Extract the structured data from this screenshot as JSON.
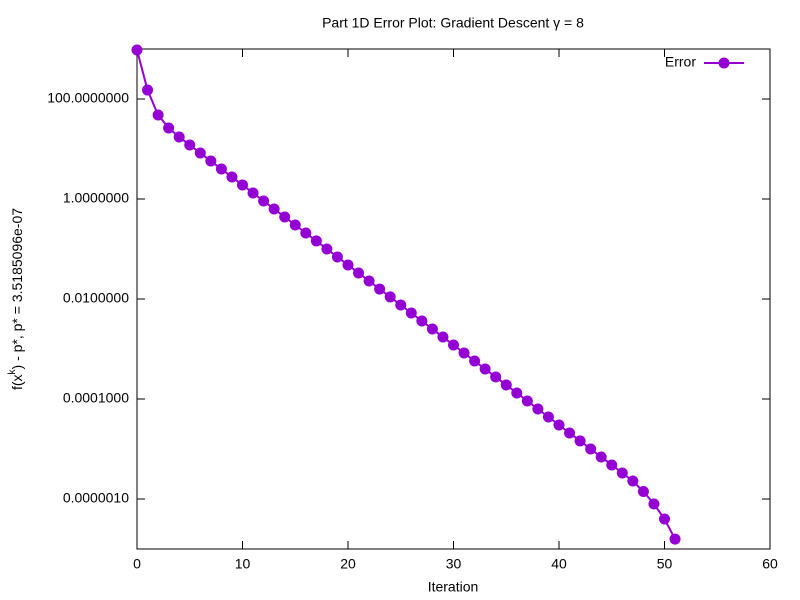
{
  "chart_data": {
    "type": "line",
    "title": "Part 1D Error Plot: Gradient Descent γ = 8",
    "xlabel": "Iteration",
    "ylabel": [
      "f(x",
      "k",
      ") - p*, p* = 3.5185096e-07"
    ],
    "x": [
      0,
      1,
      2,
      3,
      4,
      5,
      6,
      7,
      8,
      9,
      10,
      11,
      12,
      13,
      14,
      15,
      16,
      17,
      18,
      19,
      20,
      21,
      22,
      23,
      24,
      25,
      26,
      27,
      28,
      29,
      30,
      31,
      32,
      33,
      34,
      35,
      36,
      37,
      38,
      39,
      40,
      41,
      42,
      43,
      44,
      45,
      46,
      47,
      48,
      49,
      50,
      51
    ],
    "series": [
      {
        "name": "Error",
        "color": "#9400d3",
        "values": [
          955,
          151,
          47.9,
          26.3,
          17.4,
          12.0,
          8.32,
          5.75,
          3.98,
          2.75,
          1.91,
          1.32,
          0.912,
          0.631,
          0.437,
          0.302,
          0.209,
          0.145,
          0.1,
          0.0692,
          0.0479,
          0.0331,
          0.0229,
          0.0158,
          0.011,
          0.00759,
          0.00525,
          0.00363,
          0.00251,
          0.00174,
          0.0012,
          0.000832,
          0.000575,
          0.000398,
          0.000275,
          0.000191,
          0.000132,
          9.12e-05,
          6.31e-05,
          4.37e-05,
          3.02e-05,
          2.09e-05,
          1.45e-05,
          1e-05,
          6.92e-06,
          4.79e-06,
          3.31e-06,
          2.29e-06,
          1.41e-06,
          7.94e-07,
          3.98e-07,
          1.58e-07
        ]
      }
    ],
    "xlim": [
      0,
      60
    ],
    "xticks": [
      0,
      10,
      20,
      30,
      40,
      50,
      60
    ],
    "ylim": [
      1e-07,
      1000
    ],
    "ylog": true,
    "yticks": [
      {
        "value": 100,
        "label": "100.0000000"
      },
      {
        "value": 1,
        "label": "1.0000000"
      },
      {
        "value": 0.01,
        "label": "0.0100000"
      },
      {
        "value": 0.0001,
        "label": "0.0001000"
      },
      {
        "value": 1e-06,
        "label": "0.0000010"
      }
    ],
    "legend": "top-right",
    "grid": false
  }
}
